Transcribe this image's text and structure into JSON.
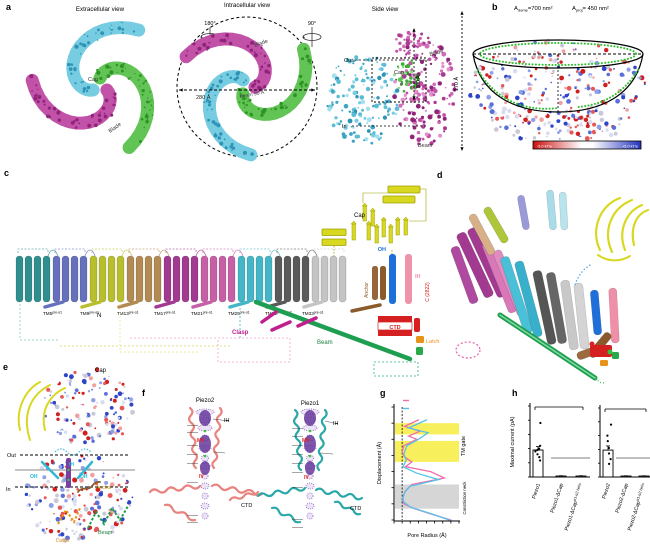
{
  "panel_a": {
    "label": "a",
    "title_extracellular": "Extracellular view",
    "title_intracellular": "Intracellular view",
    "title_side": "Side view",
    "rot_180": "180°",
    "rot_90": "90°",
    "cap": "Cap",
    "blade_extracellular": "Blade",
    "blade_intracellular": "Blade",
    "diameter": "280 Å",
    "beam_length": "Beam 90 Å",
    "side_out": "Out",
    "side_in": "In",
    "side_cap": "Cap",
    "side_blade": "Blade",
    "side_beam": "Beam",
    "height_cap_region": "100 Å",
    "height_total": "170 Å"
  },
  "panel_b": {
    "label": "b",
    "area_dome_prefix": "A",
    "area_dome_sub": "dome",
    "area_dome_value": "=700 nm²",
    "area_proj_prefix": "A",
    "area_proj_sub": "proj",
    "area_proj_value": "= 450 nm²",
    "colorbar_min": "-5.0 kT/e",
    "colorbar_max": "+5.0 kT/e"
  },
  "panel_c": {
    "label": "c",
    "n_terminus": "N",
    "thus": [
      {
        "name": "THU1",
        "el": "EL3-4",
        "tms": [
          "4",
          "3",
          "2",
          "1"
        ],
        "color": "#2f8f8f"
      },
      {
        "name": "THU2",
        "el": "EL7-8",
        "tms": [
          "8",
          "7",
          "6",
          "5"
        ],
        "color": "#6671bd"
      },
      {
        "name": "THU3",
        "el": "EL11-12",
        "tms": [
          "12",
          "11",
          "10",
          "9"
        ],
        "color": "#b9bf2c"
      },
      {
        "name": "THU4",
        "el": "EL15-16",
        "tms": [
          "16",
          "15",
          "14",
          "13"
        ],
        "color": "#b28a52"
      },
      {
        "name": "THU5",
        "el": "EL19-20",
        "tms": [
          "20",
          "19",
          "18",
          "17"
        ],
        "color": "#a23a92"
      },
      {
        "name": "THU6",
        "el": "EL23-24",
        "tms": [
          "24",
          "23",
          "22",
          "21"
        ],
        "color": "#c75fa6"
      },
      {
        "name": "THU7",
        "el": "EL27-28",
        "tms": [
          "28",
          "27",
          "26",
          "25"
        ],
        "color": "#45b5c8"
      },
      {
        "name": "THU8",
        "el": "EL31-32",
        "tms": [
          "32",
          "31",
          "30",
          "29"
        ],
        "color": "#5a5a5a"
      },
      {
        "name": "THU9",
        "el": "EL35-36",
        "tms": [
          "36",
          "35",
          "34",
          "33"
        ],
        "color": "#c4c4c4"
      }
    ],
    "tm_pre_labels": [
      {
        "base": "TM5",
        "sup": "pre-α1"
      },
      {
        "base": "TM9",
        "sup": "pre-α1"
      },
      {
        "base": "TM13",
        "sup": "pre-α1"
      },
      {
        "base": "TM17",
        "sup": "pre-α1"
      },
      {
        "base": "TM21",
        "sup": "pre-α1"
      },
      {
        "base": "TM25",
        "sup": "pre-α1"
      },
      {
        "base": "TM29",
        "sup": "pre-α1-α2"
      },
      {
        "base": "TM33",
        "sup": "pre-α1"
      }
    ],
    "cap": {
      "label": "Cap",
      "alpha4": "α4",
      "alpha3": "α3",
      "alpha2": "α2",
      "alpha1": "α1",
      "betas": [
        "β7",
        "β8",
        "β6",
        "β9",
        "β3",
        "β2",
        "β1",
        "β4",
        "β5"
      ]
    },
    "anchor": {
      "label": "Anchor",
      "alpha1": "α1",
      "alpha2": "α2",
      "alpha3": "α3"
    },
    "oh": {
      "label": "OH",
      "tm": "37"
    },
    "ih": {
      "label": "IH",
      "tm": "38"
    },
    "c_terminus": "C (2822)",
    "ctd": {
      "label": "CTD",
      "alpha1": "α1",
      "alpha2": "α2",
      "alpha3": "α3"
    },
    "latch": "Latch",
    "beam": "Beam",
    "clasp": {
      "label": "Clasp",
      "alpha1": "α1",
      "alpha2": "α2",
      "alpha3": "α3"
    }
  },
  "panel_d": {
    "label": "d",
    "labels": [
      {
        "text": "THU3",
        "color": "#9ab52e"
      },
      {
        "text": "THU2",
        "color": "#8f8fd0"
      },
      {
        "text": "THU1",
        "color": "#7fd0e0"
      },
      {
        "text": "THU4",
        "color": "#d8ae7e"
      },
      {
        "text": "THU5",
        "color": "#a23a92"
      },
      {
        "text": "THU6",
        "color": "#e088c0"
      },
      {
        "text": "THU7",
        "color": "#38b0cc"
      },
      {
        "text": "THU8",
        "color": "#4a4a4a"
      },
      {
        "text": "THU9",
        "color": "#b0b0b0"
      },
      {
        "text": "Cap",
        "color": "#000000"
      },
      {
        "text": "α4",
        "color": "#000000"
      },
      {
        "text": "α3",
        "color": "#000000"
      },
      {
        "text": "α1",
        "color": "#000000"
      },
      {
        "text": "α2",
        "color": "#000000"
      },
      {
        "text": "OH",
        "color": "#1e6fd9"
      },
      {
        "text": "IH",
        "color": "#f090a8"
      },
      {
        "text": "Anchor",
        "color": "#8b5a2b"
      },
      {
        "text": "Clasp",
        "color": "#c0208e"
      },
      {
        "text": "Beam",
        "color": "#1e8040"
      },
      {
        "text": "CTD",
        "color": "#d42020"
      },
      {
        "text": "α3",
        "color": "#000000"
      },
      {
        "text": "Latch",
        "color": "#e8921a"
      },
      {
        "text": "37",
        "color": "#000000"
      },
      {
        "text": "38",
        "color": "#000000"
      },
      {
        "text": "23",
        "color": "#000000"
      },
      {
        "text": "24",
        "color": "#000000"
      },
      {
        "text": "28",
        "color": "#000000"
      },
      {
        "text": "27",
        "color": "#000000"
      },
      {
        "text": "25",
        "color": "#000000"
      },
      {
        "text": "26",
        "color": "#000000"
      },
      {
        "text": "36",
        "color": "#000000"
      },
      {
        "text": "35",
        "color": "#000000"
      },
      {
        "text": "34",
        "color": "#000000"
      },
      {
        "text": "33",
        "color": "#000000"
      },
      {
        "text": "4",
        "color": "#000000"
      },
      {
        "text": "3",
        "color": "#000000"
      },
      {
        "text": "2",
        "color": "#000000"
      },
      {
        "text": "1",
        "color": "#000000"
      }
    ]
  },
  "panel_e": {
    "label": "e",
    "cap": "Cap",
    "out": "Out",
    "in": "In",
    "ih": "IH",
    "oh_left": "OH",
    "oh_right": "OH",
    "anchor": "Anchor",
    "beam": "Beam",
    "latch": "Latch"
  },
  "panel_f": {
    "label": "f",
    "piezo2": {
      "title": "Piezo2",
      "ih": "IH",
      "ctd": "CTD",
      "mv": "MV",
      "iv": "IV",
      "left": [
        "L2743",
        "Y2744",
        "V2750",
        "F2754",
        "E2757",
        "M2767",
        "P2810",
        "E2811"
      ],
      "right": [
        "K2753"
      ],
      "red": [
        "E2769",
        "E2770"
      ]
    },
    "piezo1": {
      "title": "Piezo1",
      "ih": "IH",
      "ctd": "CTD",
      "mv": "MV",
      "iv": "IV",
      "left": [
        "L2469",
        "Y2470",
        "V2476",
        "F2480",
        "G2483",
        "E2487",
        "M2493",
        "P2536",
        "E2537"
      ],
      "right": [
        "K2479"
      ],
      "red": [
        "E2495",
        "E2496"
      ]
    }
  },
  "panel_g": {
    "label": "g",
    "legend": [
      {
        "name": "Piezo2",
        "color": "#f06eaa"
      },
      {
        "name": "Piezo1",
        "color": "#56c2ea"
      }
    ],
    "ylabel": "Displacement (Å)",
    "xlabel": "Pore Radius (Å)",
    "right_label_top": "TM gate",
    "right_label_bottom": "Constriction neck",
    "annotations": [
      {
        "text": "L2743",
        "color": "#f06eaa"
      },
      {
        "text": "L2469",
        "color": "#56c2ea"
      },
      {
        "text": "MV",
        "color": "#e82020"
      },
      {
        "text": "V2750",
        "color": "#f06eaa"
      },
      {
        "text": "V2476",
        "color": "#56c2ea"
      },
      {
        "text": "F2754",
        "color": "#f06eaa"
      },
      {
        "text": "F2480",
        "color": "#56c2ea"
      },
      {
        "text": "E2757",
        "color": "#f06eaa"
      },
      {
        "text": "G2483",
        "color": "#56c2ea"
      },
      {
        "text": "E2487",
        "color": "#56c2ea"
      },
      {
        "text": "G2761",
        "color": "#f06eaa"
      },
      {
        "text": "IV",
        "color": "#e82020"
      },
      {
        "text": "M2767/",
        "color": "#f06eaa"
      },
      {
        "text": "M2493",
        "color": "#56c2ea"
      },
      {
        "text": "P2810/",
        "color": "#f06eaa"
      },
      {
        "text": "P2536",
        "color": "#56c2ea"
      },
      {
        "text": "E2811/",
        "color": "#f06eaa"
      },
      {
        "text": "E2537",
        "color": "#56c2ea"
      }
    ]
  },
  "panel_h": {
    "label": "h",
    "ylabel": "Maximal current (pA)"
  },
  "chart_data": [
    {
      "id": "g-pore-profile",
      "type": "line",
      "xlabel": "Pore Radius (Å)",
      "ylabel": "Displacement (Å)",
      "xlim": [
        0,
        8
      ],
      "ylim": [
        -10,
        60
      ],
      "xticks": [
        0,
        1,
        2,
        3,
        4,
        5,
        6,
        7,
        8
      ],
      "yticks": [
        60,
        50,
        40,
        30,
        20,
        10,
        0,
        -10
      ],
      "vline_x": 1,
      "bands": [
        {
          "label": "TM gate",
          "range": [
            43,
            50
          ],
          "color": "#f7ec3f"
        },
        {
          "label": "TM gate",
          "range": [
            26,
            39
          ],
          "color": "#f7ec3f"
        },
        {
          "label": "Constriction neck",
          "range": [
            -3,
            12
          ],
          "color": "#cfcfcf"
        }
      ],
      "series": [
        {
          "name": "Piezo2",
          "color": "#f06eaa",
          "points": [
            [
              3,
              52
            ],
            [
              1.3,
              48
            ],
            [
              3.2,
              45
            ],
            [
              1.8,
              42
            ],
            [
              2.8,
              40
            ],
            [
              1.2,
              36
            ],
            [
              1.0,
              32
            ],
            [
              1.3,
              29
            ],
            [
              2.2,
              26
            ],
            [
              1.4,
              23
            ],
            [
              4.5,
              20
            ],
            [
              6.2,
              16
            ],
            [
              2.2,
              12
            ],
            [
              1.4,
              8
            ],
            [
              1.1,
              4
            ],
            [
              1.2,
              0
            ],
            [
              2.5,
              -3
            ],
            [
              5,
              -7
            ],
            [
              7,
              -10
            ]
          ]
        },
        {
          "name": "Piezo1",
          "color": "#56c2ea",
          "points": [
            [
              4,
              52
            ],
            [
              1.8,
              47
            ],
            [
              4.2,
              44
            ],
            [
              3,
              40
            ],
            [
              1.6,
              36
            ],
            [
              1.2,
              31
            ],
            [
              1.5,
              27
            ],
            [
              1.1,
              23
            ],
            [
              2.8,
              19
            ],
            [
              5.5,
              15
            ],
            [
              2,
              11
            ],
            [
              1.3,
              7
            ],
            [
              1.0,
              2
            ],
            [
              2,
              -2
            ],
            [
              4.5,
              -6
            ],
            [
              6.8,
              -10
            ]
          ]
        }
      ]
    },
    {
      "id": "h-piezo1",
      "type": "bar",
      "ylabel": "Maximal current (pA)",
      "ylim": [
        0,
        2500
      ],
      "yticks": [
        0,
        500,
        1000,
        1500,
        2000,
        2500
      ],
      "categories": [
        {
          "base": "Piezo1",
          "sup": ""
        },
        {
          "base": "Piezo1-ΔCap",
          "sup": ""
        },
        {
          "base": "Piezo1-ΔCap",
          "sup": "α1-α2 helix"
        }
      ],
      "values": [
        950,
        25,
        25
      ],
      "errors": [
        120,
        10,
        10
      ],
      "n_labels": [
        "(8)",
        "(10)",
        "(9)"
      ],
      "dots": [
        1900,
        1100,
        1000,
        950,
        900,
        800,
        700,
        580
      ],
      "significance": "****"
    },
    {
      "id": "h-piezo2",
      "type": "bar",
      "ylabel": "Maximal current (pA)",
      "ylim": [
        0,
        5000
      ],
      "yticks": [
        0,
        1000,
        2000,
        3000,
        4000,
        5000
      ],
      "categories": [
        {
          "base": "Piezo2",
          "sup": ""
        },
        {
          "base": "Piezo2-ΔCap",
          "sup": ""
        },
        {
          "base": "Piezo2-ΔCap",
          "sup": "α1-α2 helix"
        }
      ],
      "values": [
        1950,
        30,
        30
      ],
      "errors": [
        300,
        15,
        15
      ],
      "n_labels": [
        "(7)",
        "(8)",
        "(8)"
      ],
      "dots": [
        3800,
        3000,
        2600,
        2100,
        1700,
        1300,
        950
      ],
      "significance": "****"
    }
  ]
}
